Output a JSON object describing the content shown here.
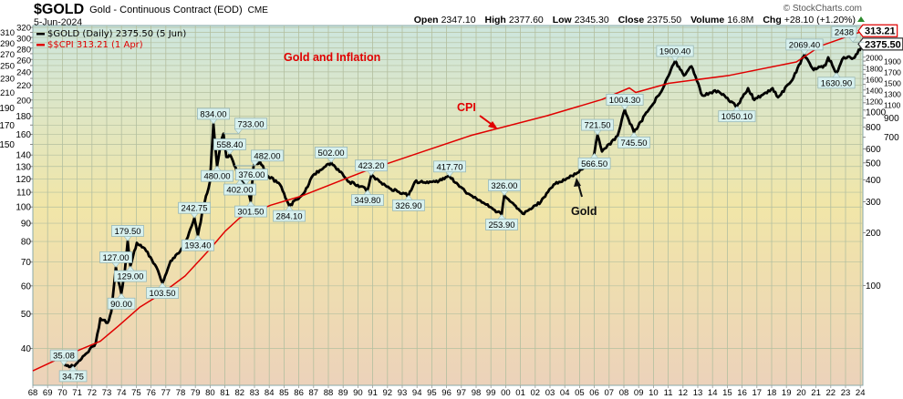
{
  "header": {
    "symbol": "$GOLD",
    "name": "Gold - Continuous Contract (EOD)",
    "exchange": "CME",
    "date": "5-Jun-2024",
    "copyright": "© StockCharts.com",
    "open_label": "Open",
    "open": "2347.10",
    "high_label": "High",
    "high": "2377.60",
    "low_label": "Low",
    "low": "2345.30",
    "close_label": "Close",
    "close": "2375.50",
    "volume_label": "Volume",
    "volume": "16.8M",
    "chg_label": "Chg",
    "chg": "+28.10 (+1.20%)",
    "chg_icon": "up-triangle-icon",
    "up_color": "#2e8b2e"
  },
  "legend": [
    {
      "text": "$GOLD (Daily) 2375.50 (5 Jun)",
      "color": "#000000"
    },
    {
      "text": "$$CPI 313.21 (1 Apr)",
      "color": "#e00000"
    }
  ],
  "chart_data": {
    "type": "line",
    "title": "Gold and Inflation",
    "annotations": [
      {
        "text": "CPI",
        "color": "#e00000",
        "arrow": true
      },
      {
        "text": "Gold",
        "color": "#111111",
        "arrow": true
      }
    ],
    "x_axis": {
      "ticks": [
        "68",
        "69",
        "70",
        "71",
        "72",
        "73",
        "74",
        "75",
        "76",
        "77",
        "78",
        "79",
        "80",
        "81",
        "82",
        "83",
        "84",
        "85",
        "86",
        "87",
        "88",
        "89",
        "90",
        "91",
        "92",
        "93",
        "94",
        "95",
        "96",
        "97",
        "98",
        "99",
        "00",
        "01",
        "02",
        "03",
        "04",
        "05",
        "06",
        "07",
        "08",
        "09",
        "10",
        "11",
        "12",
        "13",
        "14",
        "15",
        "16",
        "17",
        "18",
        "19",
        "20",
        "21",
        "22",
        "23",
        "24"
      ],
      "range": [
        1968,
        2024.4
      ]
    },
    "left_axis": {
      "series": "$$CPI",
      "scale": "log",
      "range": [
        31.5,
        324
      ],
      "ticks": [
        40,
        50,
        60,
        70,
        80,
        90,
        100,
        110,
        120,
        130,
        140,
        150,
        160,
        170,
        180,
        190,
        200,
        210,
        220,
        230,
        240,
        250,
        260,
        270,
        280,
        290,
        300,
        310,
        320
      ]
    },
    "right_axis": {
      "series": "$GOLD",
      "scale": "log",
      "range": [
        27,
        3030
      ],
      "ticks": [
        100,
        200,
        300,
        400,
        500,
        600,
        700,
        800,
        900,
        1000,
        1100,
        1200,
        1300,
        1400,
        1500,
        1600,
        1700,
        1800,
        1900,
        2000
      ]
    },
    "grid": true,
    "last_value_tags": [
      {
        "series": "$$CPI",
        "text": "313.21",
        "border": "#e00000"
      },
      {
        "series": "$GOLD",
        "text": "2375.50",
        "border": "#333333"
      }
    ],
    "series": [
      {
        "name": "$GOLD",
        "color": "#000000",
        "points": [
          [
            1970.1,
            35.08
          ],
          [
            1970.72,
            34.75
          ],
          [
            1971.77,
            41.9
          ],
          [
            1972.26,
            47.2
          ],
          [
            1972.57,
            65
          ],
          [
            1973.06,
            61.3
          ],
          [
            1973.31,
            70.8
          ],
          [
            1973.62,
            127
          ],
          [
            1973.8,
            105
          ],
          [
            1973.99,
            90
          ],
          [
            1974.23,
            122
          ],
          [
            1974.42,
            179.5
          ],
          [
            1974.6,
            129
          ],
          [
            1975.04,
            175
          ],
          [
            1975.47,
            165
          ],
          [
            1975.96,
            145
          ],
          [
            1976.46,
            122
          ],
          [
            1976.77,
            103.5
          ],
          [
            1977.32,
            138
          ],
          [
            1977.94,
            155
          ],
          [
            1978.31,
            175
          ],
          [
            1978.93,
            242.75
          ],
          [
            1979.17,
            193.4
          ],
          [
            1979.54,
            280
          ],
          [
            1979.98,
            390
          ],
          [
            1980.22,
            834
          ],
          [
            1980.47,
            480
          ],
          [
            1980.72,
            650
          ],
          [
            1980.9,
            733
          ],
          [
            1981.1,
            540
          ],
          [
            1981.33,
            558.4
          ],
          [
            1981.64,
            482
          ],
          [
            1982.01,
            402
          ],
          [
            1982.44,
            376
          ],
          [
            1982.75,
            301.5
          ],
          [
            1982.94,
            480
          ],
          [
            1983.37,
            507
          ],
          [
            1983.86,
            424
          ],
          [
            1984.73,
            376
          ],
          [
            1985.35,
            284.1
          ],
          [
            1986.33,
            334
          ],
          [
            1986.95,
            424
          ],
          [
            1988.19,
            502
          ],
          [
            1989.42,
            390
          ],
          [
            1990.65,
            349.8
          ],
          [
            1990.9,
            423.2
          ],
          [
            1992.14,
            358
          ],
          [
            1993.43,
            326.9
          ],
          [
            1993.86,
            390
          ],
          [
            1995.22,
            390
          ],
          [
            1996.21,
            417.7
          ],
          [
            1997.44,
            334
          ],
          [
            1998.68,
            289
          ],
          [
            1999.73,
            253.9
          ],
          [
            1999.91,
            326
          ],
          [
            2001.15,
            257
          ],
          [
            2002.38,
            300
          ],
          [
            2003.25,
            376
          ],
          [
            2004.85,
            439
          ],
          [
            2005.72,
            495
          ],
          [
            2006.0,
            566.5
          ],
          [
            2006.21,
            721.5
          ],
          [
            2006.52,
            580
          ],
          [
            2007.57,
            710
          ],
          [
            2008.06,
            1004.3
          ],
          [
            2008.68,
            745.5
          ],
          [
            2009.6,
            980
          ],
          [
            2010.65,
            1331
          ],
          [
            2011.46,
            1900.4
          ],
          [
            2012.07,
            1573
          ],
          [
            2012.57,
            1773
          ],
          [
            2013.31,
            1210
          ],
          [
            2014.36,
            1285
          ],
          [
            2015.65,
            1050.1
          ],
          [
            2016.4,
            1331
          ],
          [
            2016.83,
            1140
          ],
          [
            2018.06,
            1331
          ],
          [
            2018.43,
            1182
          ],
          [
            2019.3,
            1447
          ],
          [
            2020.22,
            2069.4
          ],
          [
            2020.84,
            1690
          ],
          [
            2021.64,
            1795
          ],
          [
            2021.83,
            1997
          ],
          [
            2022.38,
            1630.9
          ],
          [
            2022.88,
            1997
          ],
          [
            2023.62,
            1990
          ],
          [
            2024.25,
            2438
          ],
          [
            2024.4,
            2375.5
          ]
        ]
      },
      {
        "name": "$$CPI",
        "color": "#e00000",
        "points": [
          [
            1968.0,
            34.6
          ],
          [
            1970.1,
            38.0
          ],
          [
            1972.57,
            41.9
          ],
          [
            1973.8,
            46.3
          ],
          [
            1975.22,
            52.2
          ],
          [
            1976.7,
            57.0
          ],
          [
            1978.31,
            64.0
          ],
          [
            1979.98,
            76.1
          ],
          [
            1981.02,
            85.5
          ],
          [
            1982.01,
            93.3
          ],
          [
            1984.11,
            101.2
          ],
          [
            1986.15,
            107.2
          ],
          [
            1990.47,
            126.1
          ],
          [
            1994.6,
            144.1
          ],
          [
            1997.69,
            159.1
          ],
          [
            2002.81,
            180.7
          ],
          [
            2006.52,
            200.7
          ],
          [
            2008.37,
            216.3
          ],
          [
            2008.8,
            210
          ],
          [
            2011.02,
            222.7
          ],
          [
            2015.16,
            234.6
          ],
          [
            2019.67,
            255.9
          ],
          [
            2021.33,
            284
          ],
          [
            2024.25,
            313.21
          ]
        ]
      }
    ],
    "point_labels": [
      {
        "text": "35.08",
        "x": 1970.1,
        "y": 35.08,
        "pos": "above"
      },
      {
        "text": "34.75",
        "x": 1970.72,
        "y": 34.75,
        "pos": "below"
      },
      {
        "text": "127.00",
        "x": 1973.62,
        "y": 127,
        "pos": "above"
      },
      {
        "text": "90.00",
        "x": 1973.99,
        "y": 90,
        "pos": "below"
      },
      {
        "text": "179.50",
        "x": 1974.42,
        "y": 179.5,
        "pos": "above"
      },
      {
        "text": "129.00",
        "x": 1974.6,
        "y": 129,
        "pos": "below"
      },
      {
        "text": "103.50",
        "x": 1976.77,
        "y": 103.5,
        "pos": "below"
      },
      {
        "text": "242.75",
        "x": 1978.93,
        "y": 242.75,
        "pos": "above"
      },
      {
        "text": "193.40",
        "x": 1979.17,
        "y": 193.4,
        "pos": "below"
      },
      {
        "text": "834.00",
        "x": 1980.22,
        "y": 834,
        "pos": "above"
      },
      {
        "text": "480.00",
        "x": 1980.47,
        "y": 480,
        "pos": "below"
      },
      {
        "text": "733.00",
        "x": 1980.9,
        "y": 733,
        "pos": "above"
      },
      {
        "text": "558.40",
        "x": 1981.33,
        "y": 558.4,
        "pos": "above"
      },
      {
        "text": "482.00",
        "x": 1981.64,
        "y": 482,
        "pos": "above"
      },
      {
        "text": "402.00",
        "x": 1982.01,
        "y": 402,
        "pos": "below"
      },
      {
        "text": "376.00",
        "x": 1982.44,
        "y": 376,
        "pos": "above"
      },
      {
        "text": "301.50",
        "x": 1982.75,
        "y": 301.5,
        "pos": "below"
      },
      {
        "text": "284.10",
        "x": 1985.35,
        "y": 284.1,
        "pos": "below"
      },
      {
        "text": "502.00",
        "x": 1988.19,
        "y": 502,
        "pos": "above"
      },
      {
        "text": "349.80",
        "x": 1990.65,
        "y": 349.8,
        "pos": "below"
      },
      {
        "text": "423.20",
        "x": 1990.9,
        "y": 423.2,
        "pos": "above"
      },
      {
        "text": "326.90",
        "x": 1993.43,
        "y": 326.9,
        "pos": "below"
      },
      {
        "text": "417.70",
        "x": 1996.21,
        "y": 417.7,
        "pos": "above"
      },
      {
        "text": "253.90",
        "x": 1999.73,
        "y": 253.9,
        "pos": "below"
      },
      {
        "text": "326.00",
        "x": 1999.91,
        "y": 326,
        "pos": "above"
      },
      {
        "text": "566.50",
        "x": 2006.0,
        "y": 566.5,
        "pos": "below"
      },
      {
        "text": "721.50",
        "x": 2006.21,
        "y": 721.5,
        "pos": "above"
      },
      {
        "text": "1004.30",
        "x": 2008.06,
        "y": 1004.3,
        "pos": "above"
      },
      {
        "text": "745.50",
        "x": 2008.68,
        "y": 745.5,
        "pos": "below"
      },
      {
        "text": "1900.40",
        "x": 2011.46,
        "y": 1900.4,
        "pos": "above"
      },
      {
        "text": "1050.10",
        "x": 2015.65,
        "y": 1050.1,
        "pos": "below"
      },
      {
        "text": "2069.40",
        "x": 2020.22,
        "y": 2069.4,
        "pos": "above"
      },
      {
        "text": "1630.90",
        "x": 2022.38,
        "y": 1630.9,
        "pos": "below"
      },
      {
        "text": "2438",
        "x": 2024.25,
        "y": 2438,
        "pos": "above"
      }
    ]
  }
}
